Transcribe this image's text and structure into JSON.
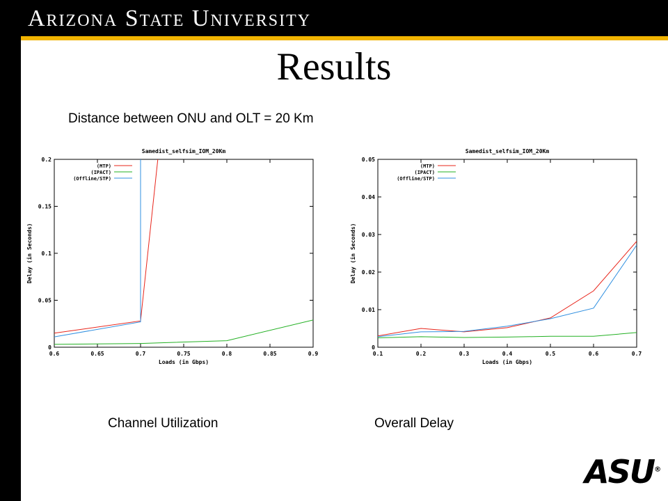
{
  "header": {
    "university": "Arizona State University",
    "logo": "ASU"
  },
  "slide": {
    "title": "Results",
    "subtitle": "Distance between ONU and OLT = 20 Km",
    "captions": [
      "Channel Utilization",
      "Overall Delay"
    ]
  },
  "colors": {
    "gold": "#f2b400",
    "mtp": "#e8241a",
    "ipact": "#22b022",
    "offline": "#2f8fe0",
    "grid": "#000000"
  },
  "chart_data": [
    {
      "type": "line",
      "title": "Samedist_selfsim_IOM_20Km",
      "xlabel": "Loads (in Gbps)",
      "ylabel": "Delay (in Seconds)",
      "xlim": [
        0.6,
        0.9
      ],
      "ylim": [
        0,
        0.2
      ],
      "xticks": [
        "0.6",
        "0.65",
        "0.7",
        "0.75",
        "0.8",
        "0.85",
        "0.9"
      ],
      "yticks": [
        "0",
        "0.05",
        "0.1",
        "0.15",
        "0.2"
      ],
      "legend_position": "top-left",
      "series": [
        {
          "name": "(MTP)",
          "color": "#e8241a",
          "points": [
            [
              0.6,
              0.015
            ],
            [
              0.7,
              0.028
            ],
            [
              0.72,
              0.2
            ]
          ]
        },
        {
          "name": "(IPACT)",
          "color": "#22b022",
          "points": [
            [
              0.6,
              0.003
            ],
            [
              0.7,
              0.004
            ],
            [
              0.8,
              0.007
            ],
            [
              0.9,
              0.029
            ]
          ]
        },
        {
          "name": "(Offline/STP)",
          "color": "#2f8fe0",
          "points": [
            [
              0.6,
              0.011
            ],
            [
              0.7,
              0.027
            ],
            [
              0.7,
              0.2
            ]
          ]
        }
      ]
    },
    {
      "type": "line",
      "title": "Samedist_selfsim_IOM_20Km",
      "xlabel": "Loads (in Gbps)",
      "ylabel": "Delay (in Seconds)",
      "xlim": [
        0.1,
        0.7
      ],
      "ylim": [
        0,
        0.05
      ],
      "xticks": [
        "0.1",
        "0.2",
        "0.3",
        "0.4",
        "0.5",
        "0.6",
        "0.7"
      ],
      "yticks": [
        "0",
        "0.01",
        "0.02",
        "0.03",
        "0.04",
        "0.05"
      ],
      "legend_position": "top-left",
      "series": [
        {
          "name": "(MTP)",
          "color": "#e8241a",
          "points": [
            [
              0.1,
              0.003
            ],
            [
              0.2,
              0.005
            ],
            [
              0.3,
              0.0041
            ],
            [
              0.4,
              0.0052
            ],
            [
              0.5,
              0.0078
            ],
            [
              0.6,
              0.015
            ],
            [
              0.7,
              0.0282
            ]
          ]
        },
        {
          "name": "(IPACT)",
          "color": "#22b022",
          "points": [
            [
              0.1,
              0.0025
            ],
            [
              0.2,
              0.0028
            ],
            [
              0.3,
              0.0026
            ],
            [
              0.4,
              0.0027
            ],
            [
              0.5,
              0.0029
            ],
            [
              0.6,
              0.0029
            ],
            [
              0.7,
              0.0039
            ]
          ]
        },
        {
          "name": "(Offline/STP)",
          "color": "#2f8fe0",
          "points": [
            [
              0.1,
              0.0028
            ],
            [
              0.2,
              0.0041
            ],
            [
              0.3,
              0.0042
            ],
            [
              0.4,
              0.0056
            ],
            [
              0.5,
              0.0076
            ],
            [
              0.6,
              0.0104
            ],
            [
              0.7,
              0.0272
            ]
          ]
        }
      ]
    }
  ]
}
